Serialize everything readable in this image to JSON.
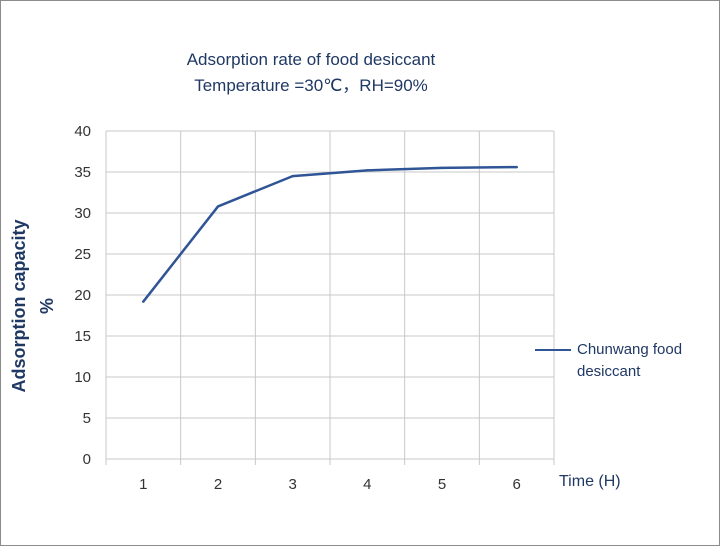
{
  "chart_data": {
    "type": "line",
    "title": "Adsorption rate of food desiccant",
    "subtitle": "Temperature =30℃，RH=90%",
    "xlabel": "Time (H)",
    "ylabel": "Adsorption capacity",
    "ylabel_unit": "%",
    "categories": [
      "1",
      "2",
      "3",
      "4",
      "5",
      "6"
    ],
    "x": [
      1,
      2,
      3,
      4,
      5,
      6
    ],
    "series": [
      {
        "name": "Chunwang food desiccant",
        "values": [
          19.2,
          30.8,
          34.5,
          35.2,
          35.5,
          35.6
        ]
      }
    ],
    "ylim": [
      0,
      40
    ],
    "yticks": [
      0,
      5,
      10,
      15,
      20,
      25,
      30,
      35,
      40
    ],
    "grid": true,
    "legend": "right",
    "colors": {
      "line": "#2f5597",
      "text": "#1f3864",
      "grid": "#c8c8c8"
    }
  }
}
